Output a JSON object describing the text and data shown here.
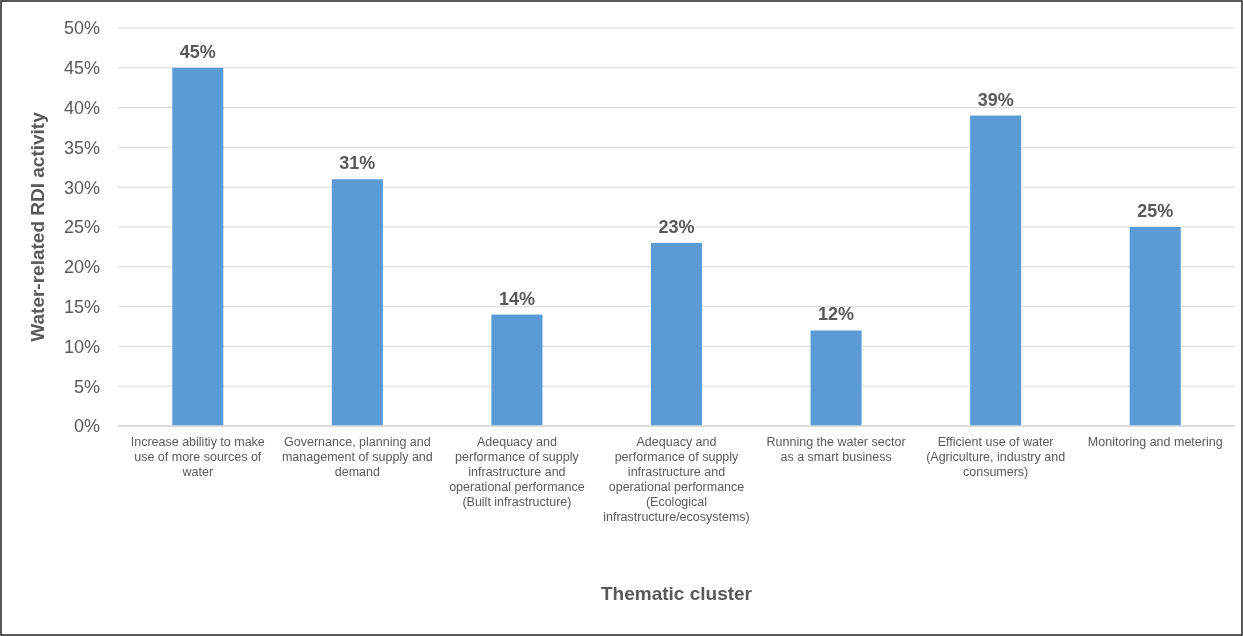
{
  "chart_data": {
    "type": "bar",
    "xlabel": "Thematic cluster",
    "ylabel": "Water-related RDI activity",
    "categories": [
      "Increase abilitiy to make use of more sources of water",
      "Governance, planning and management of supply and demand",
      "Adequacy and performance of supply infrastructure and operational performance (Built infrastructure)",
      "Adequacy and performance of supply infrastructure and operational performance (Ecological infrastructure/ecosystems)",
      "Running the water sector as a smart business",
      "Efficient use of water (Agriculture, industry and consumers)",
      "Monitoring and metering"
    ],
    "values": [
      45,
      31,
      14,
      23,
      12,
      39,
      25
    ],
    "value_labels": [
      "45%",
      "31%",
      "14%",
      "23%",
      "12%",
      "39%",
      "25%"
    ],
    "color": "#5b9bd5",
    "ylim": [
      0,
      50
    ],
    "yticks": [
      {
        "value": 0,
        "label": "0%"
      },
      {
        "value": 5,
        "label": "5%"
      },
      {
        "value": 10,
        "label": "10%"
      },
      {
        "value": 15,
        "label": "15%"
      },
      {
        "value": 20,
        "label": "20%"
      },
      {
        "value": 25,
        "label": "25%"
      },
      {
        "value": 30,
        "label": "30%"
      },
      {
        "value": 35,
        "label": "35%"
      },
      {
        "value": 40,
        "label": "40%"
      },
      {
        "value": 45,
        "label": "45%"
      },
      {
        "value": 50,
        "label": "50%"
      }
    ],
    "grid": "y"
  }
}
